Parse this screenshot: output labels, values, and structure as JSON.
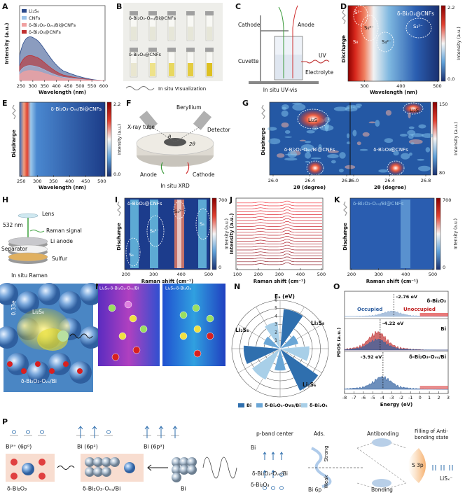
{
  "panels": {
    "A": {
      "label": "A",
      "legend": [
        "Li₂S₆",
        "CNFs",
        "δ-Bi₂O₃-Oᵥₛ/Bi@CNFs",
        "δ-Bi₂O₃@CNFs"
      ],
      "y_label": "Intensity (a.u.)",
      "x_label": "Wavelength (nm)",
      "x_ticks": [
        250,
        300,
        350,
        400,
        450,
        500,
        550,
        600
      ]
    },
    "B": {
      "label": "B",
      "top_sample": "δ-Bi₂O₃-Oᵥₛ/Bi@CNFs",
      "bottom_sample": "δ-Bi₂O₃@CNFs",
      "caption": "In situ VIsualization"
    },
    "C": {
      "label": "C",
      "cathode": "Cathode",
      "anode": "Anode",
      "uv": "UV",
      "cuvette": "Cuvette",
      "electrolyte": "Electrolyte",
      "caption": "In situ UV-vis"
    },
    "D": {
      "label": "D",
      "title": "δ-Bi₂O₃@CNFs",
      "annotations": [
        "S²⁻",
        "S₆²⁻",
        "S₄²⁻",
        "S₃²⁻",
        "S₈"
      ],
      "y_label": "Discharge",
      "x_label": "Wavelength (nm)",
      "x_ticks": [
        300,
        400,
        500
      ],
      "colorbar_ticks": [
        "2.2",
        "0.0"
      ],
      "colorbar_label": "Intensity (a.u.)"
    },
    "E": {
      "label": "E",
      "title": "δ-Bi₂O₃-Oᵥₛ/Bi@CNFs",
      "y_label": "Discharge",
      "x_label": "Wavelength (nm)",
      "x_ticks": [
        250,
        300,
        350,
        400,
        450,
        500
      ],
      "colorbar_ticks": [
        "2.2",
        "0.0"
      ],
      "colorbar_label": "Intensity (a.u.)"
    },
    "F": {
      "label": "F",
      "beryllium": "Beryllium",
      "xray": "X-ray tube",
      "detector": "Detector",
      "theta": "θ",
      "two_theta": "2θ",
      "anode": "Anode",
      "cathode": "Cathode",
      "caption": "In situ XRD"
    },
    "G": {
      "label": "G",
      "annotations": [
        "Li₂S",
        "Li₂S"
      ],
      "left_title": "δ-Bi₂O₃-Oᵥₛ/Bi@CNFs",
      "right_title": "δ-Bi₂O₃@CNFs",
      "y_label": "Discharge",
      "x_labels": [
        "2θ (degree)",
        "2θ (degree)"
      ],
      "x_ticks_left": [
        "26.0",
        "26.4",
        "26.8"
      ],
      "x_ticks_right": [
        "26.0",
        "26.4",
        "26.8"
      ],
      "colorbar_ticks": [
        150,
        80
      ],
      "colorbar_label": "Intensity (a.u.)"
    },
    "H": {
      "label": "H",
      "lens": "Lens",
      "laser": "532 nm",
      "raman": "Raman signal",
      "li_anode": "Li anode",
      "separator": "Separator",
      "sulfur": "Sulfur",
      "caption": "In situ Raman"
    },
    "I": {
      "label": "I",
      "title": "δ-Bi₂O₃@CNFs",
      "y_label": "Discharge",
      "annotations": [
        "S₈",
        "S₆²⁻",
        "S₄²⁻",
        "S₈"
      ],
      "x_ticks": [
        200,
        300,
        400,
        500
      ],
      "x_label": "Raman shift (cm⁻¹)",
      "colorbar_ticks": [
        700,
        0
      ],
      "colorbar_label": "Intensity (a.u.)"
    },
    "J": {
      "label": "J",
      "y_label": "Intensity (a.u.)",
      "x_ticks": [
        100,
        200,
        300,
        400,
        500
      ],
      "x_label": "Raman shift (cm⁻¹)"
    },
    "K": {
      "label": "K",
      "title": "δ-Bi₂O₃-Oᵥₛ/Bi@CNFs",
      "y_label": "Discharge",
      "x_ticks": [
        200,
        300,
        400,
        500
      ],
      "x_label": "Raman shift (cm⁻¹)",
      "colorbar_ticks": [
        700,
        0
      ],
      "colorbar_label": "Intensity (a.u.)"
    },
    "L": {
      "label": "L",
      "adsorbate": "Li₂S₆",
      "charge": "0.33e",
      "substrate": "δ-Bi₂O₃-Oᵥₛ/Bi"
    },
    "M": {
      "label": "M",
      "left_title": "Li₂S₆-δ-Bi₂O₃-Oᵥₛ/Bi",
      "right_title": "Li₂S₆-δ-Bi₂O₃"
    },
    "N": {
      "label": "N",
      "axis_title": "Eₐ (eV)",
      "r_ticks": [
        1,
        2,
        3,
        4,
        5,
        6
      ],
      "sectors": [
        "Li₂S₄",
        "Li₂S₈",
        "Li₂S₆"
      ],
      "legend": [
        "Bi",
        "δ-Bi₂O₃-Ovs/Bi",
        "δ-Bi₂O₃"
      ]
    },
    "O": {
      "label": "O",
      "y_label": "PDOS (a.u.)",
      "x_label": "Energy (eV)",
      "x_ticks": [
        -8,
        -7,
        -6,
        -5,
        -4,
        -3,
        -2,
        -1,
        0,
        1,
        2,
        3
      ],
      "occupied": "Occupied",
      "unoccupied": "Unoccupied",
      "rows": [
        {
          "energy": "-2.76 eV",
          "name": "δ-Bi₂O₃"
        },
        {
          "energy": "-4.22 eV",
          "name": "Bi"
        },
        {
          "energy": "-3.92 eV",
          "name": "δ-Bi₂O₃-Oᵥₛ/Bi"
        }
      ]
    },
    "P": {
      "label": "P",
      "states": [
        "Bi³⁺ (6p⁰)",
        "Bi (6p²)",
        "Bi (6p³)"
      ],
      "materials": [
        "δ-Bi₂O₃",
        "δ-Bi₂O₃-Oᵥₛ/Bi",
        "Bi"
      ],
      "p_band": "p-band center",
      "ads": "Ads.",
      "antibonding": "Antibonding",
      "filling": [
        "Filling of Anti-",
        "bonding state"
      ],
      "levels": [
        "Bi",
        "δ-Bi₂O₃-Oᵥₛ/Bi",
        "δ-Bi₂O₃"
      ],
      "strong": "Strong",
      "weak": "Weak",
      "s3p": "S 3p",
      "lisx": "LiSₓ⁻",
      "bi6p": "Bi 6p",
      "bonding": "Bonding"
    }
  }
}
